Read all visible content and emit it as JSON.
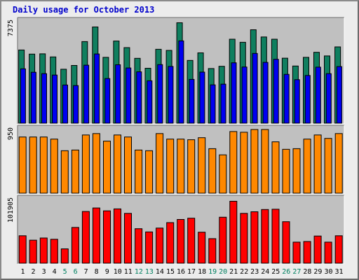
{
  "page": {
    "title": "Daily usage for October 2013"
  },
  "colors": {
    "hits": "#0f7f5f",
    "files": "#0000f0",
    "pages": "#ff8800",
    "kbytes": "#ff0000",
    "day_weekday": "#000000",
    "day_weekend": "#008060",
    "plot_bg": "#c0c0c0",
    "frame_bg": "#ececec"
  },
  "chart_data": [
    {
      "type": "bar",
      "panel": "hits-files",
      "ymax_label": "7375",
      "ylim": [
        0,
        7375
      ],
      "categories": [
        "1",
        "2",
        "3",
        "4",
        "5",
        "6",
        "7",
        "8",
        "9",
        "10",
        "11",
        "12",
        "13",
        "14",
        "15",
        "16",
        "17",
        "18",
        "19",
        "20",
        "21",
        "22",
        "23",
        "24",
        "25",
        "26",
        "27",
        "28",
        "29",
        "30",
        "31"
      ],
      "series": [
        {
          "name": "hits",
          "values": [
            5250,
            4950,
            4970,
            4750,
            3870,
            4140,
            5850,
            6900,
            4720,
            5890,
            5420,
            4650,
            3940,
            5300,
            5220,
            7200,
            4500,
            5040,
            3920,
            4080,
            6020,
            5800,
            6700,
            6180,
            6020,
            4660,
            4100,
            4720,
            5080,
            4820,
            5470
          ]
        },
        {
          "name": "files",
          "values": [
            3900,
            3650,
            3550,
            3450,
            2740,
            2700,
            4160,
            4960,
            3200,
            4190,
            3960,
            3680,
            3040,
            4200,
            4070,
            5900,
            3140,
            3660,
            2750,
            2800,
            4330,
            4030,
            5000,
            4360,
            4580,
            3500,
            3120,
            3420,
            4020,
            3550,
            4060
          ]
        }
      ]
    },
    {
      "type": "bar",
      "panel": "pages",
      "ymax_label": "950",
      "ylim": [
        0,
        950
      ],
      "categories": [
        "1",
        "2",
        "3",
        "4",
        "5",
        "6",
        "7",
        "8",
        "9",
        "10",
        "11",
        "12",
        "13",
        "14",
        "15",
        "16",
        "17",
        "18",
        "19",
        "20",
        "21",
        "22",
        "23",
        "24",
        "25",
        "26",
        "27",
        "28",
        "29",
        "30",
        "31"
      ],
      "series": [
        {
          "name": "pages",
          "values": [
            820,
            820,
            820,
            790,
            620,
            630,
            850,
            870,
            760,
            850,
            820,
            630,
            620,
            870,
            790,
            790,
            780,
            810,
            650,
            560,
            900,
            890,
            930,
            930,
            750,
            640,
            650,
            790,
            850,
            800,
            870
          ]
        }
      ]
    },
    {
      "type": "bar",
      "panel": "kbytes",
      "ymax_label": "101905",
      "ylim": [
        0,
        101905
      ],
      "categories": [
        "1",
        "2",
        "3",
        "4",
        "5",
        "6",
        "7",
        "8",
        "9",
        "10",
        "11",
        "12",
        "13",
        "14",
        "15",
        "16",
        "17",
        "18",
        "19",
        "20",
        "21",
        "22",
        "23",
        "24",
        "25",
        "26",
        "27",
        "28",
        "29",
        "30",
        "31"
      ],
      "series": [
        {
          "name": "kbytes",
          "values": [
            43000,
            36000,
            39500,
            37500,
            22500,
            56000,
            81000,
            86500,
            82000,
            85000,
            78000,
            54000,
            49000,
            55000,
            63500,
            68500,
            70500,
            48500,
            38500,
            72000,
            97000,
            78000,
            80500,
            84000,
            84500,
            65000,
            33000,
            34000,
            42500,
            33000,
            43000
          ]
        }
      ]
    }
  ],
  "x_days": [
    "1",
    "2",
    "3",
    "4",
    "5",
    "6",
    "7",
    "8",
    "9",
    "10",
    "11",
    "12",
    "13",
    "14",
    "15",
    "16",
    "17",
    "18",
    "19",
    "20",
    "21",
    "22",
    "23",
    "24",
    "25",
    "26",
    "27",
    "28",
    "29",
    "30",
    "31"
  ],
  "weekend_days": [
    "5",
    "6",
    "12",
    "13",
    "19",
    "20",
    "26",
    "27"
  ]
}
